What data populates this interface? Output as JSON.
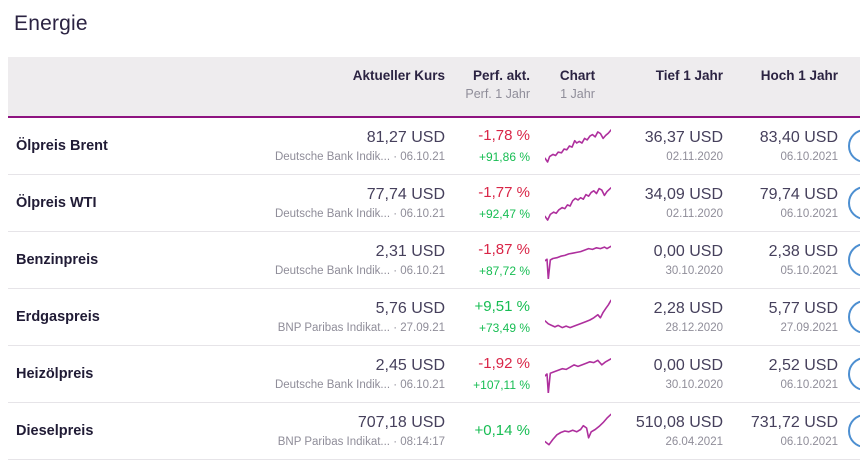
{
  "page": {
    "title": "Energie"
  },
  "colors": {
    "accent_line": "#8e1380",
    "sparkline": "#ae2f9d",
    "negative": "#d92547",
    "positive": "#17bd53",
    "header_bg": "#eeecee",
    "circle_button": "#4d8fd1"
  },
  "table": {
    "headers": {
      "kurs": "Aktueller Kurs",
      "perf_main": "Perf. akt.",
      "perf_sub": "Perf. 1 Jahr",
      "chart_main": "Chart",
      "chart_sub": "1 Jahr",
      "tief": "Tief 1 Jahr",
      "hoch": "Hoch 1 Jahr"
    },
    "rows": [
      {
        "name": "Ölpreis Brent",
        "kurs": "81,27 USD",
        "source": "Deutsche Bank Indik... · 06.10.21",
        "perf_akt": "-1,78 %",
        "perf_akt_dir": "neg",
        "perf_1j": "+91,86 %",
        "perf_1j_dir": "pos",
        "tief": "36,37 USD",
        "tief_date": "02.11.2020",
        "hoch": "83,40 USD",
        "hoch_date": "06.10.2021",
        "spark": [
          [
            0,
            82
          ],
          [
            4,
            92
          ],
          [
            7,
            78
          ],
          [
            12,
            72
          ],
          [
            16,
            75
          ],
          [
            20,
            66
          ],
          [
            25,
            68
          ],
          [
            29,
            58
          ],
          [
            33,
            60
          ],
          [
            37,
            50
          ],
          [
            41,
            53
          ],
          [
            45,
            36
          ],
          [
            48,
            42
          ],
          [
            52,
            38
          ],
          [
            56,
            42
          ],
          [
            60,
            30
          ],
          [
            64,
            34
          ],
          [
            68,
            24
          ],
          [
            72,
            20
          ],
          [
            76,
            26
          ],
          [
            80,
            13
          ],
          [
            84,
            17
          ],
          [
            88,
            30
          ],
          [
            92,
            22
          ],
          [
            96,
            16
          ],
          [
            100,
            8
          ]
        ]
      },
      {
        "name": "Ölpreis WTI",
        "kurs": "77,74 USD",
        "source": "Deutsche Bank Indik... · 06.10.21",
        "perf_akt": "-1,77 %",
        "perf_akt_dir": "neg",
        "perf_1j": "+92,47 %",
        "perf_1j_dir": "pos",
        "tief": "34,09 USD",
        "tief_date": "02.11.2020",
        "hoch": "79,74 USD",
        "hoch_date": "06.10.2021",
        "spark": [
          [
            0,
            85
          ],
          [
            4,
            95
          ],
          [
            8,
            80
          ],
          [
            13,
            74
          ],
          [
            17,
            77
          ],
          [
            21,
            68
          ],
          [
            26,
            62
          ],
          [
            30,
            65
          ],
          [
            34,
            55
          ],
          [
            38,
            58
          ],
          [
            42,
            44
          ],
          [
            46,
            38
          ],
          [
            50,
            42
          ],
          [
            54,
            36
          ],
          [
            58,
            40
          ],
          [
            62,
            28
          ],
          [
            66,
            32
          ],
          [
            70,
            22
          ],
          [
            74,
            18
          ],
          [
            78,
            25
          ],
          [
            82,
            12
          ],
          [
            86,
            16
          ],
          [
            90,
            30
          ],
          [
            94,
            20
          ],
          [
            100,
            10
          ]
        ]
      },
      {
        "name": "Benzinpreis",
        "kurs": "2,31 USD",
        "source": "Deutsche Bank Indik... · 06.10.21",
        "perf_akt": "-1,87 %",
        "perf_akt_dir": "neg",
        "perf_1j": "+87,72 %",
        "perf_1j_dir": "pos",
        "tief": "0,00 USD",
        "tief_date": "30.10.2020",
        "hoch": "2,38 USD",
        "hoch_date": "05.10.2021",
        "spark": [
          [
            0,
            52
          ],
          [
            3,
            48
          ],
          [
            5,
            100
          ],
          [
            8,
            50
          ],
          [
            12,
            46
          ],
          [
            18,
            44
          ],
          [
            24,
            40
          ],
          [
            30,
            38
          ],
          [
            36,
            34
          ],
          [
            42,
            32
          ],
          [
            48,
            30
          ],
          [
            54,
            28
          ],
          [
            60,
            24
          ],
          [
            66,
            20
          ],
          [
            72,
            22
          ],
          [
            78,
            18
          ],
          [
            84,
            20
          ],
          [
            90,
            16
          ],
          [
            94,
            20
          ],
          [
            100,
            14
          ]
        ]
      },
      {
        "name": "Erdgaspreis",
        "kurs": "5,76 USD",
        "source": "BNP Paribas Indikat... · 27.09.21",
        "perf_akt": "+9,51 %",
        "perf_akt_dir": "pos",
        "perf_1j": "+73,49 %",
        "perf_1j_dir": "pos",
        "tief": "2,28 USD",
        "tief_date": "28.12.2020",
        "hoch": "5,77 USD",
        "hoch_date": "27.09.2021",
        "spark": [
          [
            0,
            60
          ],
          [
            5,
            68
          ],
          [
            10,
            72
          ],
          [
            15,
            76
          ],
          [
            20,
            72
          ],
          [
            26,
            78
          ],
          [
            32,
            74
          ],
          [
            38,
            78
          ],
          [
            44,
            74
          ],
          [
            50,
            70
          ],
          [
            56,
            66
          ],
          [
            62,
            62
          ],
          [
            68,
            58
          ],
          [
            74,
            52
          ],
          [
            80,
            44
          ],
          [
            84,
            52
          ],
          [
            88,
            38
          ],
          [
            92,
            28
          ],
          [
            96,
            18
          ],
          [
            100,
            6
          ]
        ]
      },
      {
        "name": "Heizölpreis",
        "kurs": "2,45 USD",
        "source": "Deutsche Bank Indik... · 06.10.21",
        "perf_akt": "-1,92 %",
        "perf_akt_dir": "neg",
        "perf_1j": "+107,11 %",
        "perf_1j_dir": "pos",
        "tief": "0,00 USD",
        "tief_date": "30.10.2020",
        "hoch": "2,52 USD",
        "hoch_date": "06.10.2021",
        "spark": [
          [
            0,
            55
          ],
          [
            3,
            50
          ],
          [
            5,
            100
          ],
          [
            8,
            48
          ],
          [
            14,
            44
          ],
          [
            20,
            40
          ],
          [
            26,
            36
          ],
          [
            32,
            38
          ],
          [
            38,
            32
          ],
          [
            44,
            26
          ],
          [
            50,
            30
          ],
          [
            56,
            26
          ],
          [
            62,
            22
          ],
          [
            68,
            18
          ],
          [
            74,
            20
          ],
          [
            80,
            14
          ],
          [
            86,
            26
          ],
          [
            92,
            18
          ],
          [
            100,
            10
          ]
        ]
      },
      {
        "name": "Dieselpreis",
        "kurs": "707,18 USD",
        "source": "BNP Paribas Indikat... · 08:14:17",
        "perf_akt": "+0,14 %",
        "perf_akt_dir": "pos",
        "perf_1j": "",
        "perf_1j_dir": "pos",
        "tief": "510,08 USD",
        "tief_date": "26.04.2021",
        "hoch": "731,72 USD",
        "hoch_date": "06.10.2021",
        "spark": [
          [
            0,
            78
          ],
          [
            6,
            86
          ],
          [
            12,
            72
          ],
          [
            18,
            60
          ],
          [
            24,
            54
          ],
          [
            30,
            50
          ],
          [
            36,
            52
          ],
          [
            42,
            48
          ],
          [
            48,
            52
          ],
          [
            54,
            46
          ],
          [
            58,
            36
          ],
          [
            63,
            42
          ],
          [
            66,
            68
          ],
          [
            70,
            52
          ],
          [
            76,
            46
          ],
          [
            82,
            38
          ],
          [
            88,
            28
          ],
          [
            94,
            16
          ],
          [
            100,
            6
          ]
        ]
      }
    ]
  }
}
